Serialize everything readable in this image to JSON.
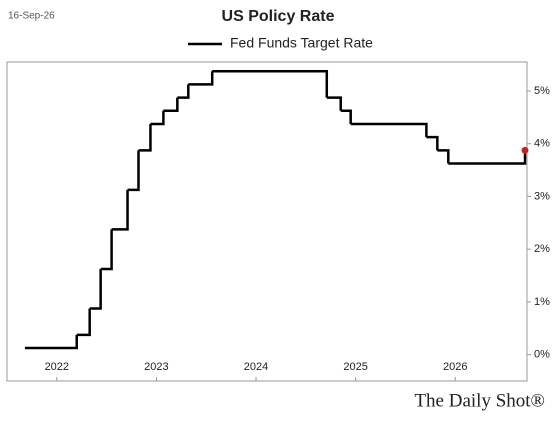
{
  "chart_data": {
    "type": "step",
    "date_stamp": "16-Sep-26",
    "title": "US Policy Rate",
    "source": "The Daily Shot®",
    "series": [
      {
        "name": "Fed Funds Target Rate",
        "color": "#000000",
        "marker_color": "#cc1f1f",
        "x": [
          2021.68,
          2022.2,
          2022.33,
          2022.44,
          2022.55,
          2022.71,
          2022.82,
          2022.94,
          2023.07,
          2023.21,
          2023.32,
          2023.56,
          2024.71,
          2024.85,
          2024.95,
          2025.71,
          2025.82,
          2025.93,
          2026.7
        ],
        "values": [
          0.125,
          0.375,
          0.875,
          1.625,
          2.375,
          3.125,
          3.875,
          4.375,
          4.625,
          4.875,
          5.125,
          5.375,
          4.875,
          4.625,
          4.375,
          4.125,
          3.875,
          3.625,
          3.875
        ]
      }
    ],
    "xlim": [
      2021.5,
      2026.72
    ],
    "xticks": [
      2022,
      2023,
      2024,
      2025,
      2026
    ],
    "ylim": [
      -0.5,
      5.55
    ],
    "yticks": [
      {
        "value": 0,
        "label": "0%"
      },
      {
        "value": 1,
        "label": "1%"
      },
      {
        "value": 2,
        "label": "2%"
      },
      {
        "value": 3,
        "label": "3%"
      },
      {
        "value": 4,
        "label": "4%"
      },
      {
        "value": 5,
        "label": "5%"
      }
    ]
  }
}
